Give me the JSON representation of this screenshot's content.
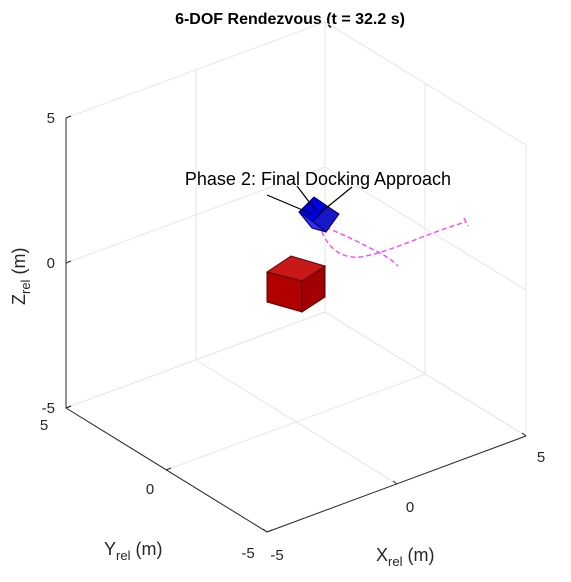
{
  "chart_data": {
    "type": "scatter",
    "title": "6-DOF Rendezvous (t = 32.2 s)",
    "xlabel": {
      "base": "X",
      "sub": "rel",
      "unit": " (m)"
    },
    "ylabel": {
      "base": "Y",
      "sub": "rel",
      "unit": " (m)"
    },
    "zlabel": {
      "base": "Z",
      "sub": "rel",
      "unit": " (m)"
    },
    "xlim": [
      -5,
      5
    ],
    "ylim": [
      -5,
      5
    ],
    "zlim": [
      -5,
      5
    ],
    "x_ticks": [
      "-5",
      "0",
      "5"
    ],
    "y_ticks": [
      "5",
      "0",
      "-5"
    ],
    "z_ticks": [
      "5",
      "0",
      "-5"
    ],
    "grid": true,
    "annotation": "Phase 2: Final Docking Approach",
    "bodies": [
      {
        "name": "target",
        "shape": "cube",
        "color": "#b00000",
        "center": [
          0,
          0,
          0
        ]
      },
      {
        "name": "chaser",
        "shape": "cube",
        "color": "#0000e0",
        "center": [
          0.3,
          0.1,
          1.5
        ]
      }
    ],
    "trajectory": {
      "color": "#ff44ff",
      "style": "dashed"
    }
  }
}
